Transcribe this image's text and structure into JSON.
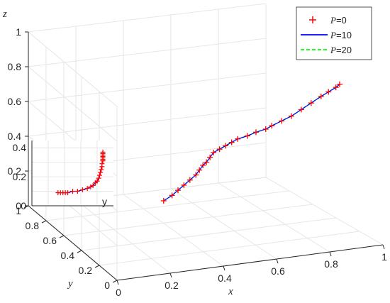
{
  "chart_data": {
    "type": "line",
    "projection": "3d",
    "xlabel": "x",
    "ylabel": "y",
    "zlabel": "z",
    "xlim": [
      0,
      1
    ],
    "ylim": [
      0,
      1
    ],
    "zlim": [
      0,
      1
    ],
    "x_ticks": [
      "0",
      "0.2",
      "0.4",
      "0.6",
      "0.8",
      "1"
    ],
    "y_ticks": [
      "0",
      "0.2",
      "0.4",
      "0.6",
      "0.8",
      "1"
    ],
    "z_ticks": [
      "0",
      "0.2",
      "0.4",
      "0.6",
      "0.8",
      "1"
    ],
    "grid": true,
    "legend_position": "top-right",
    "legend": [
      {
        "var": "P",
        "value": "=0",
        "style": "marker-plus",
        "color": "#ff0000"
      },
      {
        "var": "P",
        "value": "=10",
        "style": "solid",
        "color": "#0000ff"
      },
      {
        "var": "P",
        "value": "=20",
        "style": "dashed",
        "color": "#00ff00"
      }
    ],
    "series": [
      {
        "name": "P=0",
        "color": "#ff0000",
        "marker": "plus",
        "points": [
          [
            0.45,
            0.72,
            0.07
          ],
          [
            0.48,
            0.71,
            0.1
          ],
          [
            0.5,
            0.7,
            0.13
          ],
          [
            0.52,
            0.69,
            0.16
          ],
          [
            0.54,
            0.68,
            0.19
          ],
          [
            0.56,
            0.67,
            0.22
          ],
          [
            0.57,
            0.66,
            0.25
          ],
          [
            0.58,
            0.65,
            0.28
          ],
          [
            0.59,
            0.64,
            0.3
          ],
          [
            0.6,
            0.63,
            0.33
          ],
          [
            0.61,
            0.62,
            0.36
          ],
          [
            0.63,
            0.61,
            0.38
          ],
          [
            0.65,
            0.6,
            0.4
          ],
          [
            0.67,
            0.59,
            0.42
          ],
          [
            0.69,
            0.58,
            0.44
          ],
          [
            0.72,
            0.56,
            0.46
          ],
          [
            0.75,
            0.55,
            0.48
          ],
          [
            0.78,
            0.53,
            0.5
          ],
          [
            0.8,
            0.52,
            0.52
          ],
          [
            0.83,
            0.5,
            0.55
          ],
          [
            0.86,
            0.48,
            0.58
          ],
          [
            0.89,
            0.46,
            0.62
          ],
          [
            0.92,
            0.44,
            0.66
          ],
          [
            0.95,
            0.42,
            0.7
          ],
          [
            0.97,
            0.4,
            0.73
          ],
          [
            0.99,
            0.38,
            0.76
          ],
          [
            1.0,
            0.37,
            0.78
          ]
        ]
      },
      {
        "name": "P=10",
        "color": "#0000ff",
        "style": "solid",
        "same_as": "P=0"
      },
      {
        "name": "P=20",
        "color": "#00ff00",
        "style": "dashed",
        "same_as": "P=0"
      }
    ],
    "inset": {
      "axis_label": "y",
      "y_ticks": [
        "0",
        "0.2",
        "0.4"
      ],
      "ylim": [
        0,
        0.45
      ],
      "xlim": [
        0,
        1
      ],
      "series": {
        "name": "P=0",
        "x": [
          0.32,
          0.35,
          0.38,
          0.41,
          0.44,
          0.5,
          0.56,
          0.62,
          0.68,
          0.72,
          0.75,
          0.78,
          0.8,
          0.82,
          0.83,
          0.84,
          0.85,
          0.86,
          0.86,
          0.87,
          0.87,
          0.87,
          0.87,
          0.87,
          0.87,
          0.87
        ],
        "y": [
          0.09,
          0.09,
          0.09,
          0.09,
          0.09,
          0.1,
          0.1,
          0.11,
          0.12,
          0.13,
          0.14,
          0.16,
          0.17,
          0.19,
          0.21,
          0.23,
          0.25,
          0.27,
          0.29,
          0.31,
          0.32,
          0.33,
          0.34,
          0.35,
          0.36,
          0.37
        ]
      }
    }
  }
}
